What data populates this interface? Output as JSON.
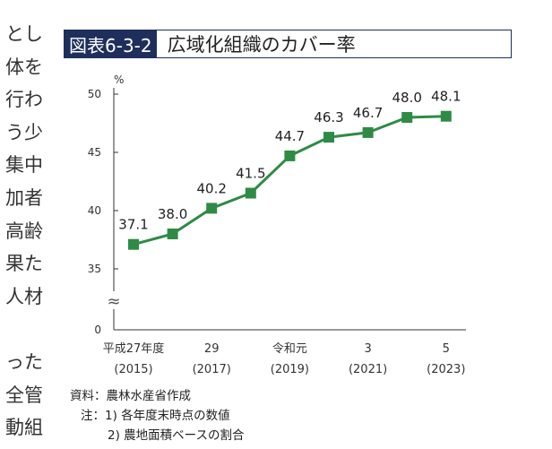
{
  "side_text": [
    "とし",
    "体を",
    "行わ",
    "う少",
    "集中",
    "加者",
    "高齢",
    "果た",
    "人材",
    "",
    "った",
    "全管",
    "動組"
  ],
  "figure": {
    "label": "図表6-3-2",
    "title": "広域化組織のカバー率"
  },
  "chart_data": {
    "type": "line",
    "title": "広域化組織のカバー率",
    "ylabel": "%",
    "ylim": [
      35,
      50
    ],
    "yticks": [
      "0",
      "35",
      "40",
      "45",
      "50"
    ],
    "axis_break": true,
    "axis_break_symbol": "≈",
    "grid": false,
    "line_color": "#2e8b45",
    "marker_color": "#2e8b45",
    "x": [
      2015,
      2016,
      2017,
      2018,
      2019,
      2020,
      2021,
      2022,
      2023
    ],
    "values": [
      37.1,
      38.0,
      40.2,
      41.5,
      44.7,
      46.3,
      46.7,
      48.0,
      48.1
    ],
    "value_labels": [
      "37.1",
      "38.0",
      "40.2",
      "41.5",
      "44.7",
      "46.3",
      "46.7",
      "48.0",
      "48.1"
    ],
    "x_tick_labels": [
      {
        "index": 0,
        "line1": "平成27年度",
        "line2": "(2015)"
      },
      {
        "index": 2,
        "line1": "29",
        "line2": "(2017)"
      },
      {
        "index": 4,
        "line1": "令和元",
        "line2": "(2019)"
      },
      {
        "index": 6,
        "line1": "3",
        "line2": "(2021)"
      },
      {
        "index": 8,
        "line1": "5",
        "line2": "(2023)"
      }
    ]
  },
  "notes": {
    "source": "資料：農林水産省作成",
    "note1": "注：1) 各年度末時点の数値",
    "note2": "2) 農地面積ベースの割合"
  }
}
